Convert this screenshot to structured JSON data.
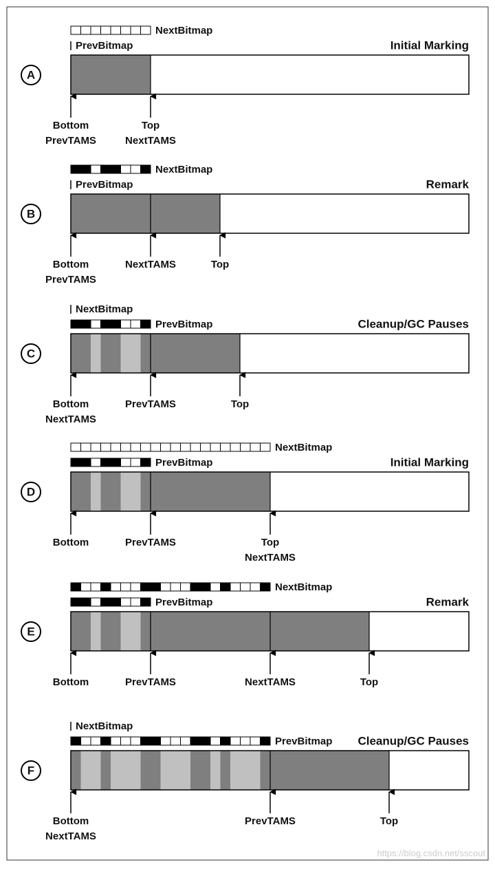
{
  "panels": [
    {
      "letter": "A",
      "title": "Initial Marking",
      "bitmaps": [
        "NextBitmap",
        "PrevBitmap"
      ],
      "pointers": [
        [
          "Bottom",
          "PrevTAMS"
        ],
        [
          "Top",
          "NextTAMS"
        ]
      ]
    },
    {
      "letter": "B",
      "title": "Remark",
      "bitmaps": [
        "NextBitmap",
        "PrevBitmap"
      ],
      "pointers": [
        [
          "Bottom",
          "PrevTAMS"
        ],
        [
          "NextTAMS"
        ],
        [
          "Top"
        ]
      ]
    },
    {
      "letter": "C",
      "title": "Cleanup/GC Pauses",
      "bitmaps": [
        "NextBitmap",
        "PrevBitmap"
      ],
      "pointers": [
        [
          "Bottom",
          "NextTAMS"
        ],
        [
          "PrevTAMS"
        ],
        [
          "Top"
        ]
      ]
    },
    {
      "letter": "D",
      "title": "Initial Marking",
      "bitmaps": [
        "NextBitmap",
        "PrevBitmap"
      ],
      "pointers": [
        [
          "Bottom"
        ],
        [
          "PrevTAMS"
        ],
        [
          "Top",
          "NextTAMS"
        ]
      ]
    },
    {
      "letter": "E",
      "title": "Remark",
      "bitmaps": [
        "NextBitmap",
        "PrevBitmap"
      ],
      "pointers": [
        [
          "Bottom"
        ],
        [
          "PrevTAMS"
        ],
        [
          "NextTAMS"
        ],
        [
          "Top"
        ]
      ]
    },
    {
      "letter": "F",
      "title": "Cleanup/GC Pauses",
      "bitmaps": [
        "NextBitmap",
        "PrevBitmap"
      ],
      "pointers": [
        [
          "Bottom",
          "NextTAMS"
        ],
        [
          "PrevTAMS"
        ],
        [
          "Top"
        ]
      ]
    }
  ],
  "watermark": "https://blog.csdn.net/sscout"
}
